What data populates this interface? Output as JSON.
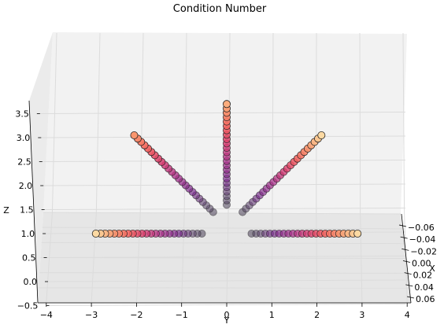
{
  "chart_data": {
    "type": "scatter3d",
    "title": "Condition Number",
    "xlabel": "X",
    "ylabel": "Y",
    "zlabel": "Z",
    "x_ticks": [
      "−0.06",
      "−0.04",
      "−0.02",
      "0.00",
      "0.02",
      "0.04",
      "0.06"
    ],
    "y_ticks": [
      "−4",
      "−3",
      "−2",
      "−1",
      "0",
      "1",
      "2",
      "3",
      "4"
    ],
    "z_ticks": [
      "−0.5",
      "0.0",
      "0.5",
      "1.0",
      "1.5",
      "2.0",
      "2.5",
      "3.0",
      "3.5"
    ],
    "ylim": [
      -4,
      4
    ],
    "zlim": [
      -0.5,
      3.5
    ],
    "colormap": "magma",
    "grid": true,
    "series": [
      {
        "arm": "left-horizontal",
        "y_start": -0.55,
        "y_end": -2.9,
        "z_start": 1.0,
        "z_end": 1.0,
        "color_start": 0.05,
        "color_end": 0.95,
        "points": 24
      },
      {
        "arm": "right-horizontal",
        "y_start": 0.55,
        "y_end": 2.9,
        "z_start": 1.0,
        "z_end": 1.0,
        "color_start": 0.05,
        "color_end": 0.95,
        "points": 24
      },
      {
        "arm": "left-diagonal",
        "y_start": -0.3,
        "y_end": -2.05,
        "z_start": 1.45,
        "z_end": 3.05,
        "color_start": 0.05,
        "color_end": 0.8,
        "points": 24
      },
      {
        "arm": "right-diagonal",
        "y_start": 0.35,
        "y_end": 2.1,
        "z_start": 1.45,
        "z_end": 3.05,
        "color_start": 0.05,
        "color_end": 0.95,
        "points": 24
      },
      {
        "arm": "vertical",
        "y_start": 0.0,
        "y_end": 0.0,
        "z_start": 1.6,
        "z_end": 3.7,
        "color_start": 0.05,
        "color_end": 0.85,
        "points": 24
      }
    ]
  }
}
